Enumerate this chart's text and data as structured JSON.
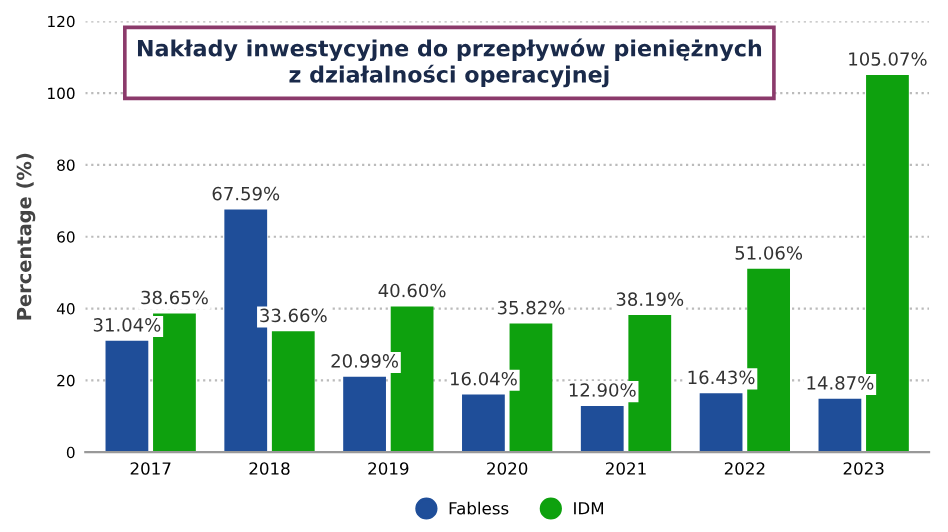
{
  "chart_data": {
    "type": "bar",
    "title": "Nakłady inwestycyjne do przepływów pieniężnych\nz działalności operacyjnej",
    "ylabel": "Percentage (%)",
    "categories": [
      "2017",
      "2018",
      "2019",
      "2020",
      "2021",
      "2022",
      "2023"
    ],
    "series": [
      {
        "name": "Fabless",
        "color": "#1f4e99",
        "values": [
          31.04,
          67.59,
          20.99,
          16.04,
          12.9,
          16.43,
          14.87
        ],
        "value_labels": [
          "31.04%",
          "67.59%",
          "20.99%",
          "16.04%",
          "12.90%",
          "16.43%",
          "14.87%"
        ]
      },
      {
        "name": "IDM",
        "color": "#0ea10e",
        "values": [
          38.65,
          33.66,
          40.6,
          35.82,
          38.19,
          51.06,
          105.07
        ],
        "value_labels": [
          "38.65%",
          "33.66%",
          "40.60%",
          "35.82%",
          "38.19%",
          "51.06%",
          "105.07%"
        ]
      }
    ],
    "ylim": [
      0,
      120
    ],
    "yticks": [
      0,
      20,
      40,
      60,
      80,
      100,
      120
    ],
    "grid": "y",
    "legend": "bottom"
  }
}
